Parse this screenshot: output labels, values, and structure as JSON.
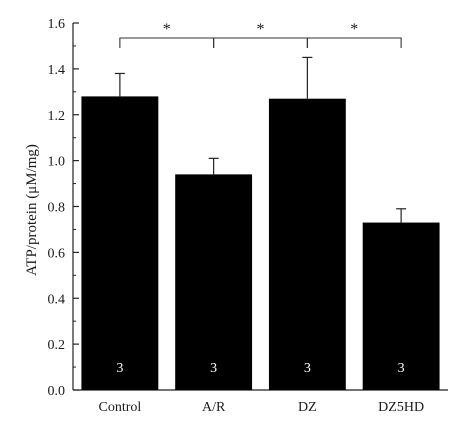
{
  "chart_data": {
    "type": "bar",
    "ylabel": "ATP/protein (μM/mg)",
    "xlabel": "",
    "ylim": [
      0,
      1.6
    ],
    "yticks": [
      0.0,
      0.2,
      0.4,
      0.6,
      0.8,
      1.0,
      1.2,
      1.4,
      1.6
    ],
    "ytick_labels": [
      "0.0",
      "0.2",
      "0.4",
      "0.6",
      "0.8",
      "1.0",
      "1.2",
      "1.4",
      "1.6"
    ],
    "categories": [
      "Control",
      "A/R",
      "DZ",
      "DZ5HD"
    ],
    "values": [
      1.28,
      0.94,
      1.27,
      0.73
    ],
    "errors": [
      0.1,
      0.07,
      0.18,
      0.06
    ],
    "bar_labels": [
      "3",
      "3",
      "3",
      "3"
    ],
    "bar_color": "#000000",
    "bar_label_color": "#ffffff",
    "significance": [
      {
        "from": 0,
        "to": 1,
        "label": "*"
      },
      {
        "from": 1,
        "to": 2,
        "label": "*"
      },
      {
        "from": 2,
        "to": 3,
        "label": "*"
      }
    ],
    "grid": false
  }
}
